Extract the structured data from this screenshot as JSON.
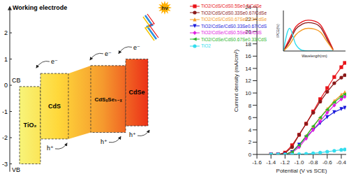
{
  "diagram": {
    "title": "Working electrode",
    "axis": {
      "ylim": [
        -3.3,
        3.0
      ],
      "yticks": [
        2,
        1,
        0,
        -1,
        -2,
        -3
      ]
    },
    "cb_label": "CB",
    "vb_label": "VB",
    "electron": "e⁻",
    "hole": "h⁺",
    "light": "hν",
    "materials": [
      {
        "label": "TiO₂",
        "cb": -0.05,
        "vb": -3.0
      },
      {
        "label": "CdS",
        "cb": 0.45,
        "vb": -2.05
      },
      {
        "label": "CdSₓSe₁₋ₓ",
        "cb": 0.75,
        "vb": -1.8
      },
      {
        "label": "CdSe",
        "cb": 1.0,
        "vb": -1.55
      }
    ]
  },
  "chart_data": [
    {
      "type": "line",
      "xlabel": "Potential (V vs SCE)",
      "ylabel": "Current density (mA/cm²)",
      "x": [
        -1.4,
        -1.3,
        -1.2,
        -1.1,
        -1.0,
        -0.9,
        -0.8,
        -0.7,
        -0.6,
        -0.5,
        -0.4,
        -0.35
      ],
      "xlim": [
        -1.6,
        -0.33
      ],
      "xticks": [
        -1.6,
        -1.4,
        -1.2,
        {
          "value": -1,
          "label": "-1.0"
        },
        -0.8,
        -0.6,
        -0.4
      ],
      "ylim": [
        0,
        24
      ],
      "yticks": [
        0,
        2,
        4,
        6,
        8,
        10,
        12,
        14,
        16,
        18,
        20,
        22,
        24
      ],
      "legend": "upper left",
      "series": [
        {
          "name": "TiO2/CdS/CdS0.5Se0.5/CdSe",
          "color": "#e8141a",
          "marker": "square",
          "values": [
            0,
            0,
            0.3,
            1.5,
            3.2,
            5.0,
            7.0,
            9.0,
            10.8,
            12.6,
            14.2,
            14.9
          ]
        },
        {
          "name": "TiO2/CdS/CdS0.33Se0.67/CdSe",
          "color": "#8b1a1a",
          "marker": "circle",
          "values": [
            0,
            0,
            0.2,
            1.2,
            3.2,
            5.0,
            6.8,
            8.6,
            10.2,
            11.6,
            12.5,
            12.9
          ]
        },
        {
          "name": "TiO2/CdS/CdS0.67Se0.33/CdSe",
          "color": "#f59a23",
          "marker": "triangle",
          "values": [
            0,
            0,
            0,
            0.5,
            1.5,
            3.0,
            4.5,
            6.0,
            7.4,
            8.7,
            9.7,
            10.1
          ]
        },
        {
          "name": "TiO2/CdSe/CdS0.33Se0.67/CdS",
          "color": "#1a1adb",
          "marker": "triangle-down",
          "values": [
            0,
            0,
            0,
            0.4,
            1.6,
            2.8,
            4.0,
            5.1,
            6.1,
            6.9,
            7.4,
            7.6
          ]
        },
        {
          "name": "TiO2/CdSe/CdS0.5Se0.5/CdS",
          "color": "#e020e0",
          "marker": "diamond",
          "values": [
            0,
            0,
            0,
            0.3,
            1.2,
            2.6,
            4.0,
            5.4,
            6.8,
            8.0,
            9.0,
            9.4
          ]
        },
        {
          "name": "TiO2/CdSe/CdS0.67Se0.33/CdS",
          "color": "#2ab52a",
          "marker": "triangle-left",
          "values": [
            0,
            0,
            0,
            0.4,
            1.5,
            3.0,
            4.6,
            6.0,
            7.3,
            8.5,
            9.4,
            9.8
          ]
        },
        {
          "name": "TiO2",
          "color": "#33ddee",
          "marker": "circle",
          "values": [
            0,
            0,
            0,
            0,
            0.05,
            0.1,
            0.2,
            0.3,
            0.45,
            0.6,
            0.75,
            0.8
          ]
        }
      ]
    },
    {
      "type": "line",
      "xlabel": "Wavelength(nm)",
      "ylabel": "IPCE(%)",
      "x": [
        300,
        350,
        400,
        450,
        500,
        550,
        600,
        650,
        700
      ],
      "xlim": [
        300,
        800
      ],
      "ylim": [
        0,
        50
      ],
      "tick_labels": false,
      "series": [
        {
          "color": "#e8141a",
          "values": [
            0,
            15,
            30,
            36,
            38,
            37,
            32,
            18,
            2
          ]
        },
        {
          "color": "#8b1a1a",
          "values": [
            0,
            12,
            27,
            33,
            35,
            34,
            29,
            15,
            1
          ]
        },
        {
          "color": "#f59a23",
          "values": [
            0,
            8,
            20,
            26,
            28,
            27,
            23,
            12,
            1
          ]
        },
        {
          "color": "#33ddee",
          "values": [
            0,
            28,
            8,
            1,
            0,
            0,
            0,
            0,
            0
          ]
        }
      ]
    }
  ]
}
